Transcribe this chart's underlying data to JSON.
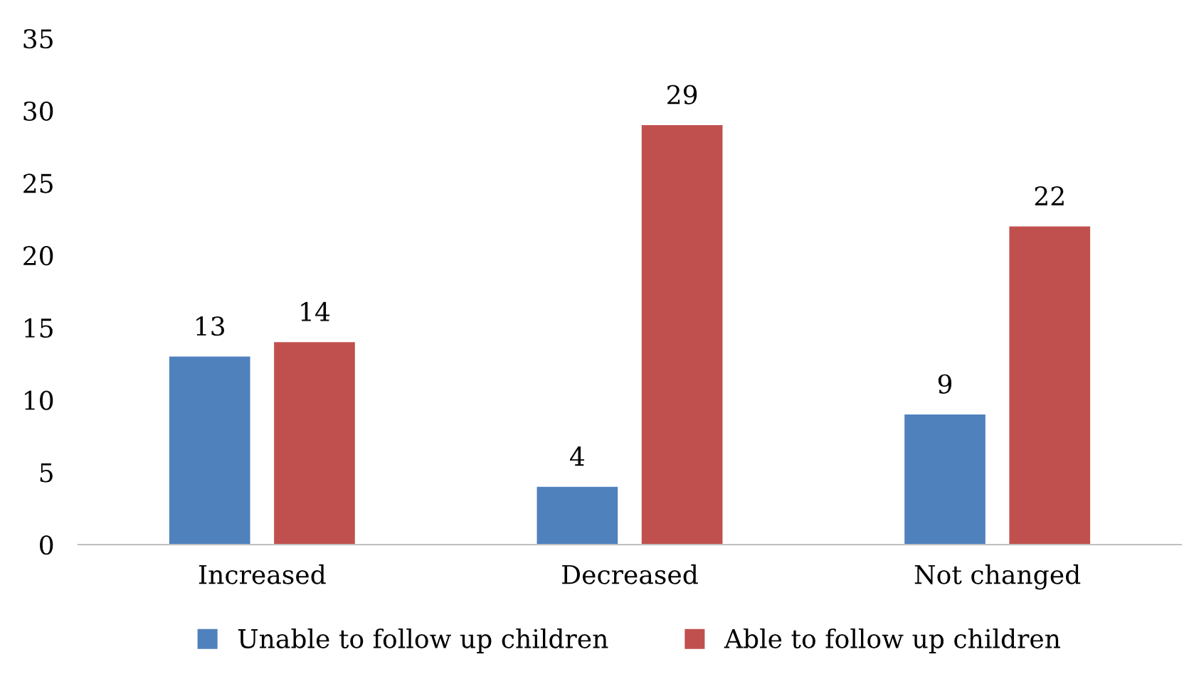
{
  "chart_data": {
    "type": "bar",
    "categories": [
      "Increased",
      "Decreased",
      "Not changed"
    ],
    "series": [
      {
        "name": "Unable to follow up children",
        "color": "#4f81bd",
        "values": [
          13,
          4,
          9
        ]
      },
      {
        "name": "Able to follow up children",
        "color": "#c0504d",
        "values": [
          14,
          29,
          22
        ]
      }
    ],
    "ylim": [
      0,
      35
    ],
    "yticks": [
      0,
      5,
      10,
      15,
      20,
      25,
      30,
      35
    ],
    "data_labels": true,
    "grid": false,
    "legend": "bottom"
  }
}
